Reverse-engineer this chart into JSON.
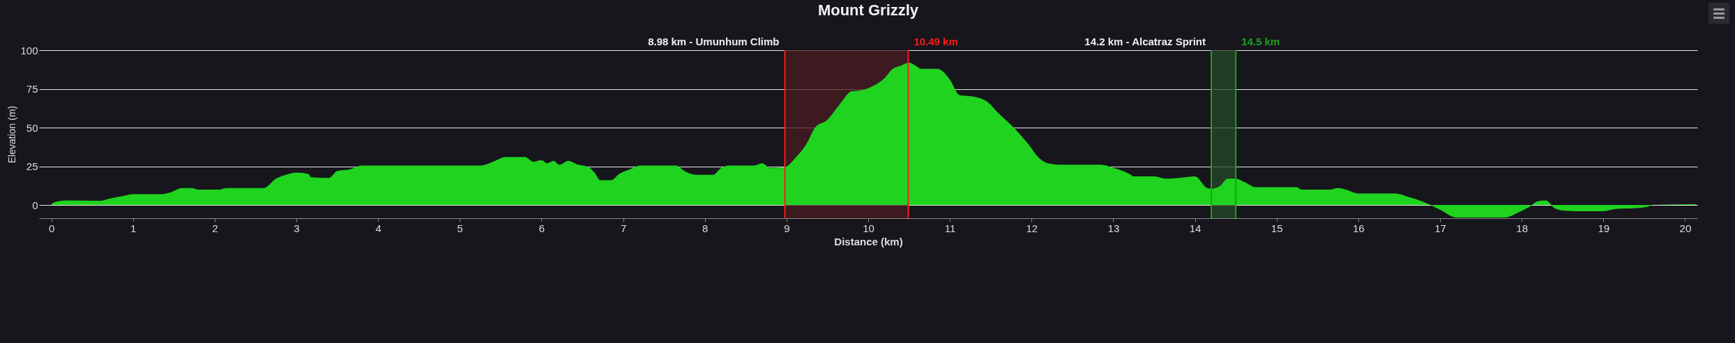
{
  "chart_data": {
    "type": "area",
    "title": "Mount Grizzly",
    "xlabel": "Distance (km)",
    "ylabel": "Elevation (m)",
    "x": [
      0,
      0.05,
      0.2,
      0.6,
      0.7,
      0.9,
      1.0,
      1.35,
      1.45,
      1.6,
      1.72,
      1.8,
      2.05,
      2.15,
      2.6,
      2.75,
      2.9,
      3.0,
      3.15,
      3.18,
      3.4,
      3.5,
      3.65,
      3.8,
      4.0,
      5.25,
      5.45,
      5.55,
      5.8,
      5.9,
      6.0,
      6.07,
      6.15,
      6.22,
      6.33,
      6.45,
      6.55,
      6.65,
      6.72,
      6.85,
      6.95,
      7.1,
      7.2,
      7.65,
      7.75,
      7.9,
      8.1,
      8.2,
      8.3,
      8.6,
      8.7,
      8.8,
      8.98,
      9.1,
      9.25,
      9.35,
      9.5,
      9.65,
      9.8,
      9.9,
      10.0,
      10.1,
      10.2,
      10.3,
      10.4,
      10.5,
      10.58,
      10.65,
      10.85,
      10.92,
      11.0,
      11.12,
      11.3,
      11.45,
      11.6,
      11.8,
      11.95,
      12.1,
      12.2,
      12.4,
      12.85,
      13.0,
      13.2,
      13.25,
      13.5,
      13.65,
      13.8,
      14.0,
      14.15,
      14.2,
      14.3,
      14.4,
      14.5,
      14.6,
      14.75,
      15.25,
      15.3,
      15.65,
      15.75,
      15.85,
      16.0,
      16.45,
      16.6,
      16.8,
      17.0,
      17.2,
      17.8,
      17.95,
      18.1,
      18.2,
      18.3,
      18.4,
      18.5,
      18.7,
      19.0,
      19.15,
      19.4,
      19.55,
      19.6,
      20.13
    ],
    "series": [
      {
        "color": "#1fd31f",
        "values": [
          0.5,
          2,
          3,
          2.7,
          4,
          6,
          7,
          7,
          8,
          11,
          11,
          10,
          10,
          11,
          11,
          17,
          20,
          21,
          20,
          18,
          17.5,
          22,
          23,
          25.5,
          25.5,
          25.5,
          29,
          31,
          31,
          28,
          29,
          27,
          28.5,
          26,
          28.5,
          26,
          25,
          21,
          16,
          16,
          20,
          23.5,
          25.5,
          25.5,
          22,
          19.5,
          19.5,
          24,
          25.5,
          25.5,
          27,
          24,
          24.5,
          30,
          40,
          50,
          55,
          65,
          73.5,
          74,
          75.5,
          78,
          82,
          88,
          90,
          92,
          90,
          88,
          88,
          86,
          81,
          71,
          70,
          67,
          59,
          49,
          40,
          30,
          27,
          26,
          26,
          24,
          20,
          18.5,
          18.5,
          17,
          17.5,
          18.5,
          11,
          10.6,
          12,
          17,
          17,
          15,
          11.5,
          11.5,
          10,
          10,
          11,
          10,
          7.5,
          7.5,
          5.5,
          2,
          -3,
          -8,
          -8,
          -5,
          -1,
          2.5,
          3,
          -2,
          -3.5,
          -4,
          -4,
          -2.5,
          -2,
          -1,
          0,
          0.5
        ]
      }
    ],
    "xlim": [
      -0.15,
      20.15
    ],
    "xticks": [
      0,
      1,
      2,
      3,
      4,
      5,
      6,
      7,
      8,
      9,
      10,
      11,
      12,
      13,
      14,
      15,
      16,
      17,
      18,
      19,
      20
    ],
    "ylim": [
      -8.5,
      100
    ],
    "yticks": [
      0,
      25,
      50,
      75,
      100
    ],
    "grid": "y",
    "bands": [
      {
        "axis": "x",
        "from": 8.98,
        "to": 10.49,
        "color": "#4a1c20"
      },
      {
        "axis": "x",
        "from": 14.2,
        "to": 14.5,
        "color": "#244a26"
      }
    ],
    "ref_lines": [
      {
        "axis": "x",
        "value": 8.98,
        "label": "8.98 km - Umunhum Climb",
        "color": "#ff1a1a"
      },
      {
        "axis": "x",
        "value": 10.49,
        "label": "10.49 km",
        "color": "#ff1a1a"
      },
      {
        "axis": "x",
        "value": 14.2,
        "label": "14.2 km - Alcatraz Sprint",
        "color": "#1f9f1f"
      },
      {
        "axis": "x",
        "value": 14.5,
        "label": "14.5 km",
        "color": "#1f9f1f"
      }
    ]
  }
}
